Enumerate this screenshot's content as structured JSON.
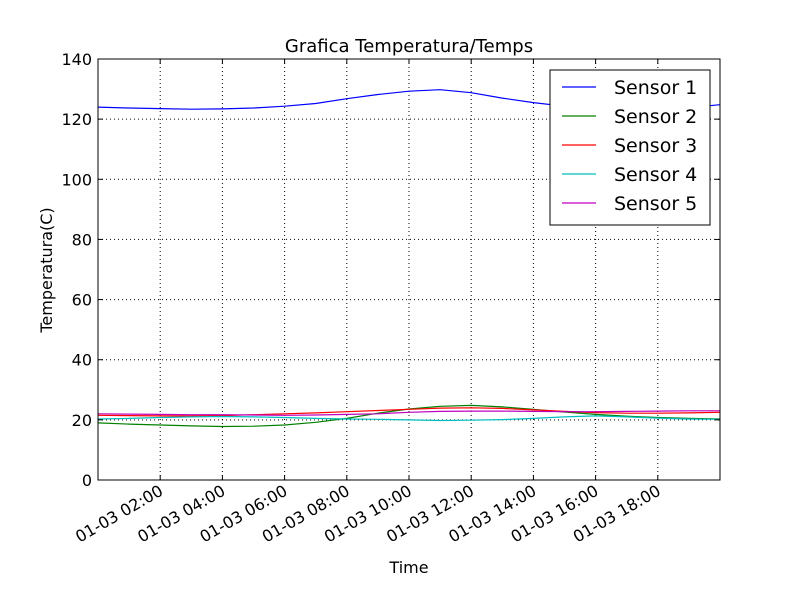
{
  "chart_data": {
    "type": "line",
    "title": "Grafica Temperatura/Temps",
    "xlabel": "Time",
    "ylabel": "Temperatura(C)",
    "xlim": [
      "01-03 00:00",
      "01-03 20:00"
    ],
    "ylim": [
      0,
      140
    ],
    "yticks": [
      0,
      20,
      40,
      60,
      80,
      100,
      120,
      140
    ],
    "xticks": [
      "01-03 02:00",
      "01-03 04:00",
      "01-03 06:00",
      "01-03 08:00",
      "01-03 10:00",
      "01-03 12:00",
      "01-03 14:00",
      "01-03 16:00",
      "01-03 18:00"
    ],
    "grid": true,
    "legend_position": "top-right",
    "x": [
      "01-03 00:00",
      "01-03 01:00",
      "01-03 02:00",
      "01-03 03:00",
      "01-03 04:00",
      "01-03 05:00",
      "01-03 06:00",
      "01-03 07:00",
      "01-03 08:00",
      "01-03 09:00",
      "01-03 10:00",
      "01-03 11:00",
      "01-03 12:00",
      "01-03 13:00",
      "01-03 14:00",
      "01-03 15:00",
      "01-03 16:00",
      "01-03 17:00",
      "01-03 18:00",
      "01-03 19:00",
      "01-03 20:00"
    ],
    "series": [
      {
        "name": "Sensor 1",
        "color": "#0000ff",
        "values": [
          124.0,
          123.7,
          123.5,
          123.3,
          123.4,
          123.7,
          124.3,
          125.2,
          126.8,
          128.2,
          129.3,
          129.8,
          128.8,
          127.0,
          125.5,
          124.3,
          123.6,
          123.2,
          123.3,
          123.8,
          124.8
        ]
      },
      {
        "name": "Sensor 2",
        "color": "#008000",
        "values": [
          19.0,
          18.6,
          18.3,
          18.0,
          17.8,
          17.9,
          18.3,
          19.2,
          20.5,
          22.2,
          23.6,
          24.5,
          24.8,
          24.3,
          23.5,
          22.6,
          21.8,
          21.2,
          20.8,
          20.5,
          20.3
        ]
      },
      {
        "name": "Sensor 3",
        "color": "#ff0000",
        "values": [
          21.5,
          21.4,
          21.3,
          21.3,
          21.4,
          21.7,
          22.0,
          22.3,
          22.7,
          23.1,
          23.5,
          23.9,
          24.0,
          23.8,
          23.3,
          22.8,
          22.4,
          22.2,
          22.2,
          22.3,
          22.5
        ]
      },
      {
        "name": "Sensor 4",
        "color": "#00bfbf",
        "values": [
          20.3,
          20.5,
          20.8,
          21.0,
          21.1,
          21.0,
          20.8,
          20.5,
          20.3,
          20.2,
          20.0,
          19.8,
          19.9,
          20.1,
          20.5,
          21.0,
          21.3,
          21.0,
          20.6,
          20.3,
          20.2
        ]
      },
      {
        "name": "Sensor 5",
        "color": "#bf00bf",
        "values": [
          22.0,
          21.9,
          21.8,
          21.7,
          21.7,
          21.6,
          21.5,
          21.6,
          21.8,
          22.0,
          22.5,
          22.8,
          22.9,
          22.9,
          22.8,
          22.7,
          22.7,
          22.8,
          22.9,
          23.0,
          23.0
        ]
      }
    ]
  }
}
